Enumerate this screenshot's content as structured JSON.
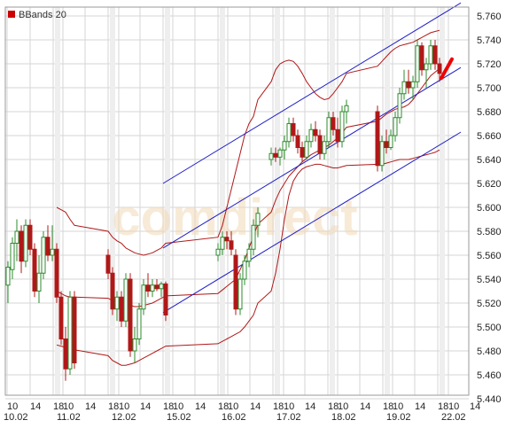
{
  "legend": {
    "label": "BBands 20",
    "color": "#cc0000"
  },
  "watermark": {
    "text": "comdirect"
  },
  "colors": {
    "up": "#2e8b2e",
    "down": "#b01818",
    "band": "#b01818",
    "channel": "#1f1fc8",
    "grid": "#d6d6d6",
    "frame": "#999999",
    "last_marker": "#ee0000"
  },
  "chart_data": {
    "type": "candlestick",
    "title": "",
    "xlabel": "",
    "ylabel": "",
    "ylim": [
      5.45,
      5.77
    ],
    "y_ticks": [
      "5.760",
      "5.740",
      "5.720",
      "5.700",
      "5.680",
      "5.660",
      "5.640",
      "5.620",
      "5.600",
      "5.580",
      "5.560",
      "5.540",
      "5.520",
      "5.500",
      "5.480",
      "5.460",
      "5.440"
    ],
    "x_ticks_time": [
      "10",
      "14",
      "18",
      "10",
      "14",
      "18",
      "10",
      "14",
      "18",
      "10",
      "14",
      "18",
      "10",
      "14",
      "18",
      "10",
      "14",
      "18",
      "10",
      "14",
      "18",
      "10",
      "14",
      "18",
      "10",
      "14"
    ],
    "x_ticks_date": [
      "10.02",
      "11.02",
      "12.02",
      "15.02",
      "16.02",
      "17.02",
      "18.02",
      "19.02",
      "22.02"
    ],
    "grid": true,
    "legend_position": "top-left",
    "indicator": "Bollinger Bands (20)",
    "candles": [
      [
        5.535,
        5.555,
        5.52,
        5.55
      ],
      [
        5.548,
        5.575,
        5.54,
        5.57
      ],
      [
        5.57,
        5.59,
        5.555,
        5.58
      ],
      [
        5.58,
        5.585,
        5.545,
        5.555
      ],
      [
        5.555,
        5.59,
        5.55,
        5.585
      ],
      [
        5.585,
        5.59,
        5.56,
        5.565
      ],
      [
        5.565,
        5.57,
        5.525,
        5.53
      ],
      [
        5.53,
        5.56,
        5.52,
        5.545
      ],
      [
        5.545,
        5.58,
        5.54,
        5.575
      ],
      [
        5.575,
        5.585,
        5.555,
        5.56
      ],
      [
        5.56,
        5.585,
        5.555,
        5.565
      ],
      [
        5.565,
        5.57,
        5.52,
        5.525
      ],
      [
        5.525,
        5.53,
        5.485,
        5.49
      ],
      [
        5.49,
        5.5,
        5.455,
        5.465
      ],
      [
        5.465,
        5.53,
        5.46,
        5.525
      ],
      [
        5.525,
        5.53,
        5.465,
        5.47
      ],
      [
        5.56,
        5.565,
        5.54,
        5.545
      ],
      [
        5.545,
        5.55,
        5.51,
        5.515
      ],
      [
        5.515,
        5.53,
        5.505,
        5.525
      ],
      [
        5.525,
        5.53,
        5.5,
        5.505
      ],
      [
        5.505,
        5.545,
        5.5,
        5.54
      ],
      [
        5.54,
        5.545,
        5.475,
        5.48
      ],
      [
        5.48,
        5.5,
        5.47,
        5.49
      ],
      [
        5.49,
        5.52,
        5.485,
        5.515
      ],
      [
        5.515,
        5.54,
        5.51,
        5.535
      ],
      [
        5.535,
        5.545,
        5.525,
        5.53
      ],
      [
        5.53,
        5.54,
        5.525,
        5.535
      ],
      [
        5.535,
        5.54,
        5.53,
        5.532
      ],
      [
        5.532,
        5.538,
        5.525,
        5.536
      ],
      [
        5.536,
        5.538,
        5.505,
        5.51
      ],
      [
        5.56,
        5.57,
        5.555,
        5.565
      ],
      [
        5.565,
        5.58,
        5.56,
        5.575
      ],
      [
        5.575,
        5.58,
        5.565,
        5.572
      ],
      [
        5.572,
        5.58,
        5.56,
        5.565
      ],
      [
        5.56,
        5.565,
        5.51,
        5.515
      ],
      [
        5.515,
        5.545,
        5.51,
        5.54
      ],
      [
        5.54,
        5.56,
        5.535,
        5.555
      ],
      [
        5.555,
        5.57,
        5.55,
        5.565
      ],
      [
        5.565,
        5.59,
        5.56,
        5.585
      ],
      [
        5.585,
        5.6,
        5.575,
        5.595
      ],
      [
        5.64,
        5.65,
        5.635,
        5.645
      ],
      [
        5.645,
        5.65,
        5.638,
        5.642
      ],
      [
        5.642,
        5.65,
        5.635,
        5.648
      ],
      [
        5.648,
        5.66,
        5.64,
        5.655
      ],
      [
        5.655,
        5.675,
        5.65,
        5.67
      ],
      [
        5.67,
        5.675,
        5.655,
        5.66
      ],
      [
        5.66,
        5.665,
        5.645,
        5.65
      ],
      [
        5.65,
        5.655,
        5.638,
        5.642
      ],
      [
        5.642,
        5.66,
        5.64,
        5.655
      ],
      [
        5.655,
        5.67,
        5.65,
        5.665
      ],
      [
        5.665,
        5.672,
        5.655,
        5.66
      ],
      [
        5.66,
        5.665,
        5.64,
        5.645
      ],
      [
        5.645,
        5.66,
        5.64,
        5.655
      ],
      [
        5.655,
        5.68,
        5.65,
        5.675
      ],
      [
        5.675,
        5.68,
        5.66,
        5.665
      ],
      [
        5.665,
        5.675,
        5.65,
        5.655
      ],
      [
        5.655,
        5.685,
        5.65,
        5.68
      ],
      [
        5.68,
        5.69,
        5.67,
        5.685
      ],
      [
        5.68,
        5.685,
        5.63,
        5.635
      ],
      [
        5.635,
        5.66,
        5.63,
        5.655
      ],
      [
        5.655,
        5.665,
        5.645,
        5.65
      ],
      [
        5.65,
        5.665,
        5.648,
        5.66
      ],
      [
        5.66,
        5.68,
        5.655,
        5.675
      ],
      [
        5.675,
        5.7,
        5.67,
        5.695
      ],
      [
        5.695,
        5.715,
        5.69,
        5.705
      ],
      [
        5.705,
        5.715,
        5.695,
        5.7
      ],
      [
        5.7,
        5.71,
        5.69,
        5.705
      ],
      [
        5.705,
        5.74,
        5.7,
        5.735
      ],
      [
        5.735,
        5.738,
        5.71,
        5.715
      ],
      [
        5.715,
        5.725,
        5.7,
        5.72
      ],
      [
        5.72,
        5.74,
        5.715,
        5.735
      ],
      [
        5.735,
        5.74,
        5.715,
        5.72
      ],
      [
        5.72,
        5.725,
        5.705,
        5.712
      ]
    ],
    "bands": {
      "middle": [
        null,
        null,
        null,
        null,
        null,
        null,
        null,
        null,
        null,
        null,
        null,
        5.53,
        5.528,
        5.526,
        5.525,
        5.525,
        5.524,
        5.522,
        5.521,
        5.52,
        5.519,
        5.518,
        5.517,
        5.517,
        5.518,
        5.519,
        5.52,
        5.522,
        5.524,
        5.526,
        5.528,
        5.531,
        5.534,
        5.537,
        5.54,
        5.548,
        5.556,
        5.566,
        5.576,
        5.586,
        5.596,
        5.606,
        5.614,
        5.62,
        5.626,
        5.63,
        5.634,
        5.638,
        5.641,
        5.644,
        5.646,
        5.648,
        5.65,
        5.652,
        5.655,
        5.658,
        5.662,
        5.667,
        5.672,
        5.675,
        5.678,
        5.68,
        5.682,
        5.683,
        5.684,
        5.686,
        5.69,
        5.695,
        5.7,
        5.705,
        5.71,
        5.713,
        5.716
      ],
      "upper": [
        null,
        null,
        null,
        null,
        null,
        null,
        null,
        null,
        null,
        null,
        null,
        5.6,
        5.598,
        5.596,
        5.59,
        5.585,
        5.58,
        5.575,
        5.572,
        5.57,
        5.566,
        5.564,
        5.562,
        5.561,
        5.56,
        5.561,
        5.562,
        5.564,
        5.566,
        5.57,
        5.575,
        5.585,
        5.6,
        5.615,
        5.63,
        5.645,
        5.66,
        5.67,
        5.676,
        5.69,
        5.705,
        5.715,
        5.72,
        5.722,
        5.723,
        5.722,
        5.718,
        5.712,
        5.705,
        5.7,
        5.695,
        5.692,
        5.69,
        5.691,
        5.695,
        5.7,
        5.705,
        5.712,
        5.718,
        5.722,
        5.726,
        5.73,
        5.733,
        5.735,
        5.736,
        5.737,
        5.738,
        5.74,
        5.742,
        5.744,
        5.746,
        5.747,
        5.748
      ],
      "lower": [
        null,
        null,
        null,
        null,
        null,
        null,
        null,
        null,
        null,
        null,
        null,
        5.485,
        5.484,
        5.483,
        5.482,
        5.481,
        5.476,
        5.472,
        5.47,
        5.468,
        5.468,
        5.469,
        5.47,
        5.472,
        5.474,
        5.476,
        5.478,
        5.48,
        5.482,
        5.484,
        5.486,
        5.488,
        5.49,
        5.492,
        5.494,
        5.496,
        5.5,
        5.505,
        5.51,
        5.52,
        5.53,
        5.545,
        5.565,
        5.59,
        5.61,
        5.622,
        5.628,
        5.632,
        5.634,
        5.635,
        5.636,
        5.636,
        5.635,
        5.634,
        5.633,
        5.633,
        5.634,
        5.635,
        5.636,
        5.636,
        5.637,
        5.638,
        5.639,
        5.64,
        5.64,
        5.64,
        5.641,
        5.642,
        5.643,
        5.644,
        5.645,
        5.646,
        5.648
      ]
    },
    "channel": {
      "start": {
        "candle": 29,
        "value": 5.62
      },
      "end": {
        "candle": 72,
        "value": 5.76
      },
      "offsets": [
        0.0,
        -0.054,
        -0.108
      ]
    },
    "last_marker": {
      "from_value": 5.708,
      "to_value": 5.718
    }
  }
}
